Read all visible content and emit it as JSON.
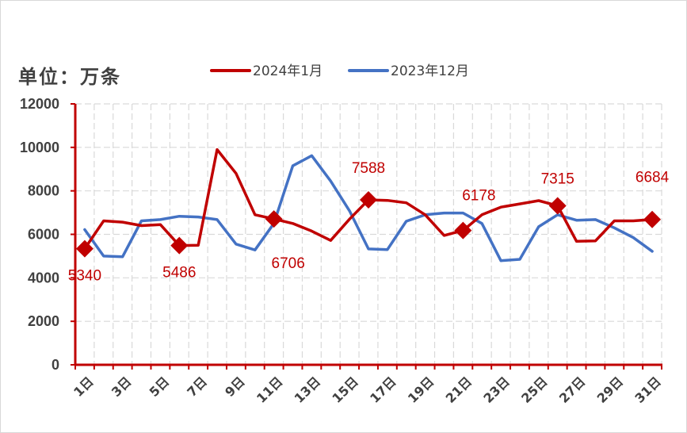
{
  "unit_label": "单位：万条",
  "chart_data": {
    "type": "line",
    "title": "",
    "xlabel": "",
    "ylabel": "单位：万条",
    "ylim": [
      0,
      12000
    ],
    "yticks": [
      0,
      2000,
      4000,
      6000,
      8000,
      10000,
      12000
    ],
    "ytick_labels": [
      "0",
      "2000",
      "4000",
      "6000",
      "8000",
      "10000",
      "12000"
    ],
    "categories": [
      "1日",
      "2日",
      "3日",
      "4日",
      "5日",
      "6日",
      "7日",
      "8日",
      "9日",
      "10日",
      "11日",
      "12日",
      "13日",
      "14日",
      "15日",
      "16日",
      "17日",
      "18日",
      "19日",
      "20日",
      "21日",
      "22日",
      "23日",
      "24日",
      "25日",
      "26日",
      "27日",
      "28日",
      "29日",
      "30日",
      "31日"
    ],
    "xtick_labels": [
      "1日",
      "3日",
      "5日",
      "7日",
      "9日",
      "11日",
      "13日",
      "15日",
      "17日",
      "19日",
      "21日",
      "23日",
      "25日",
      "27日",
      "29日",
      "31日"
    ],
    "grid": true,
    "legend_position": "top",
    "series": [
      {
        "name": "2024年1月",
        "color": "#c00000",
        "values": [
          5340,
          6620,
          6560,
          6400,
          6450,
          5486,
          5500,
          9900,
          8800,
          6900,
          6706,
          6500,
          6150,
          5720,
          6700,
          7588,
          7560,
          7450,
          6900,
          5950,
          6178,
          6900,
          7250,
          7400,
          7550,
          7315,
          5680,
          5700,
          6620,
          6620,
          6684
        ],
        "markers": [
          {
            "index": 0,
            "label": "5340"
          },
          {
            "index": 5,
            "label": "5486"
          },
          {
            "index": 10,
            "label": "6706"
          },
          {
            "index": 15,
            "label": "7588"
          },
          {
            "index": 20,
            "label": "6178"
          },
          {
            "index": 25,
            "label": "7315"
          },
          {
            "index": 30,
            "label": "6684"
          }
        ]
      },
      {
        "name": "2023年12月",
        "color": "#4472c4",
        "values": [
          6220,
          5000,
          4970,
          6620,
          6680,
          6830,
          6800,
          6680,
          5550,
          5280,
          6500,
          9150,
          9620,
          8450,
          7080,
          5330,
          5300,
          6600,
          6900,
          6980,
          6980,
          6500,
          4790,
          4850,
          6350,
          6900,
          6650,
          6680,
          6300,
          5850,
          5220
        ]
      }
    ]
  }
}
